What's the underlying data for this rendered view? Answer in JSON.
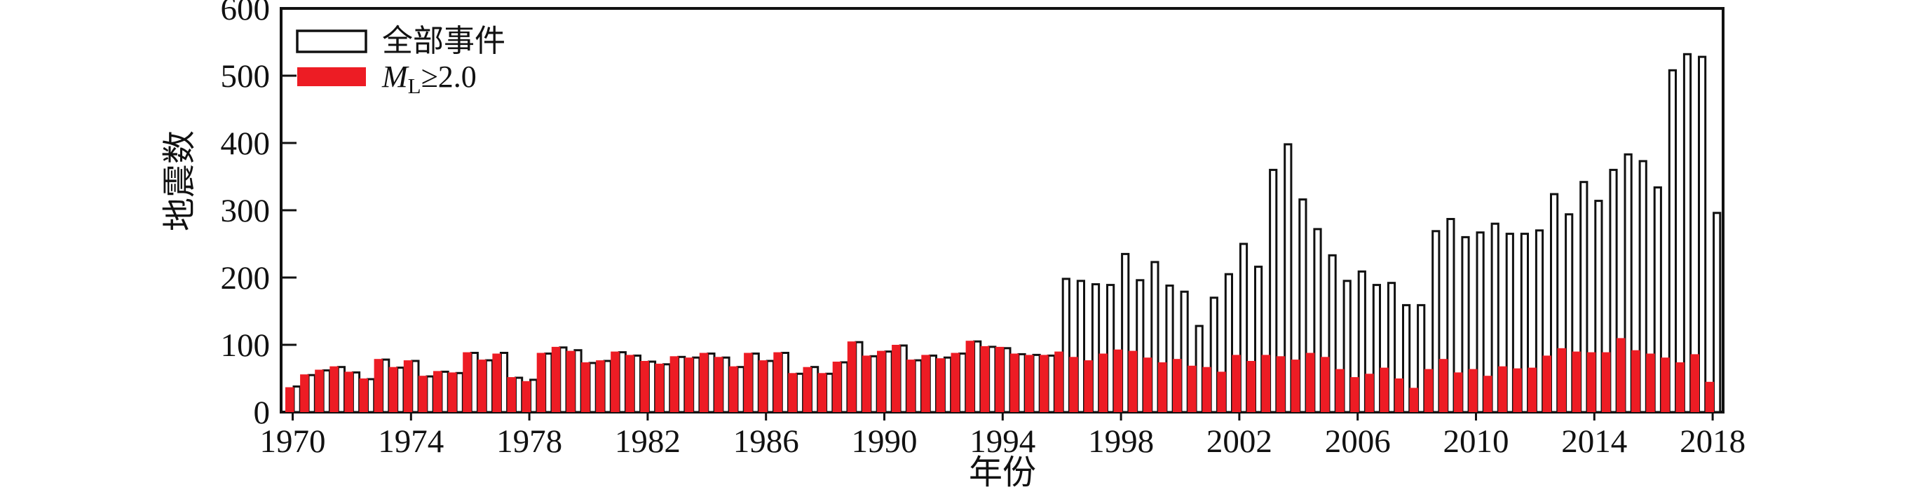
{
  "colors": {
    "red": "#ED1C24",
    "axis": "#111111",
    "background": "#ffffff"
  },
  "legend": [
    {
      "label": "全部事件",
      "swatch": "white-outlined"
    },
    {
      "label": "ML≥2.0",
      "label_parts": {
        "m": "M",
        "sub": "L",
        "rest": "≥2.0"
      },
      "swatch": "red"
    }
  ],
  "axes": {
    "ylabel": "地震数",
    "xlabel": "年份",
    "yticks": [
      0,
      100,
      200,
      300,
      400,
      500,
      600
    ],
    "xticks": [
      1970,
      1974,
      1978,
      1982,
      1986,
      1990,
      1994,
      1998,
      2002,
      2006,
      2010,
      2014,
      2018
    ],
    "ylim": [
      0,
      600
    ]
  },
  "chart_data": {
    "type": "bar",
    "title": "",
    "xlabel": "年份",
    "ylabel": "地震数",
    "ylim": [
      0,
      600
    ],
    "x_start": 1970,
    "x_step": 0.5,
    "note": "97 half-year bins from 1970.0 to 2018.0; each bin shows a red ML>=2.0 bar (left) and a white-outlined total bar (right)",
    "series": [
      {
        "name": "全部事件",
        "values": [
          38,
          55,
          62,
          67,
          59,
          49,
          78,
          66,
          76,
          53,
          60,
          58,
          88,
          77,
          88,
          51,
          48,
          87,
          96,
          92,
          73,
          76,
          89,
          84,
          75,
          71,
          82,
          81,
          87,
          81,
          67,
          87,
          76,
          88,
          57,
          67,
          57,
          74,
          104,
          83,
          90,
          99,
          77,
          84,
          81,
          87,
          105,
          97,
          95,
          86,
          85,
          84,
          198,
          195,
          190,
          189,
          235,
          196,
          223,
          188,
          179,
          128,
          170,
          205,
          250,
          216,
          360,
          398,
          316,
          272,
          233,
          195,
          209,
          189,
          192,
          159,
          159,
          269,
          287,
          260,
          267,
          280,
          265,
          265,
          270,
          324,
          294,
          342,
          314,
          360,
          383,
          373,
          334,
          508,
          532,
          528,
          296
        ]
      },
      {
        "name": "ML≥2.0",
        "values": [
          37,
          56,
          63,
          68,
          60,
          50,
          79,
          67,
          77,
          54,
          61,
          59,
          89,
          78,
          87,
          52,
          46,
          88,
          97,
          91,
          74,
          77,
          90,
          85,
          76,
          72,
          83,
          81,
          88,
          82,
          68,
          88,
          77,
          89,
          58,
          67,
          58,
          75,
          105,
          84,
          91,
          100,
          78,
          85,
          80,
          88,
          106,
          98,
          97,
          87,
          85,
          85,
          90,
          82,
          77,
          87,
          93,
          91,
          81,
          74,
          79,
          69,
          67,
          60,
          85,
          76,
          85,
          83,
          78,
          88,
          82,
          64,
          52,
          57,
          66,
          50,
          36,
          64,
          79,
          59,
          64,
          54,
          68,
          65,
          66,
          84,
          95,
          90,
          89,
          89,
          110,
          92,
          87,
          81,
          74,
          86,
          45
        ]
      }
    ]
  },
  "geometry_labels": {
    "frame": "plot-frame",
    "canvas": "earthquake-count-chart"
  }
}
